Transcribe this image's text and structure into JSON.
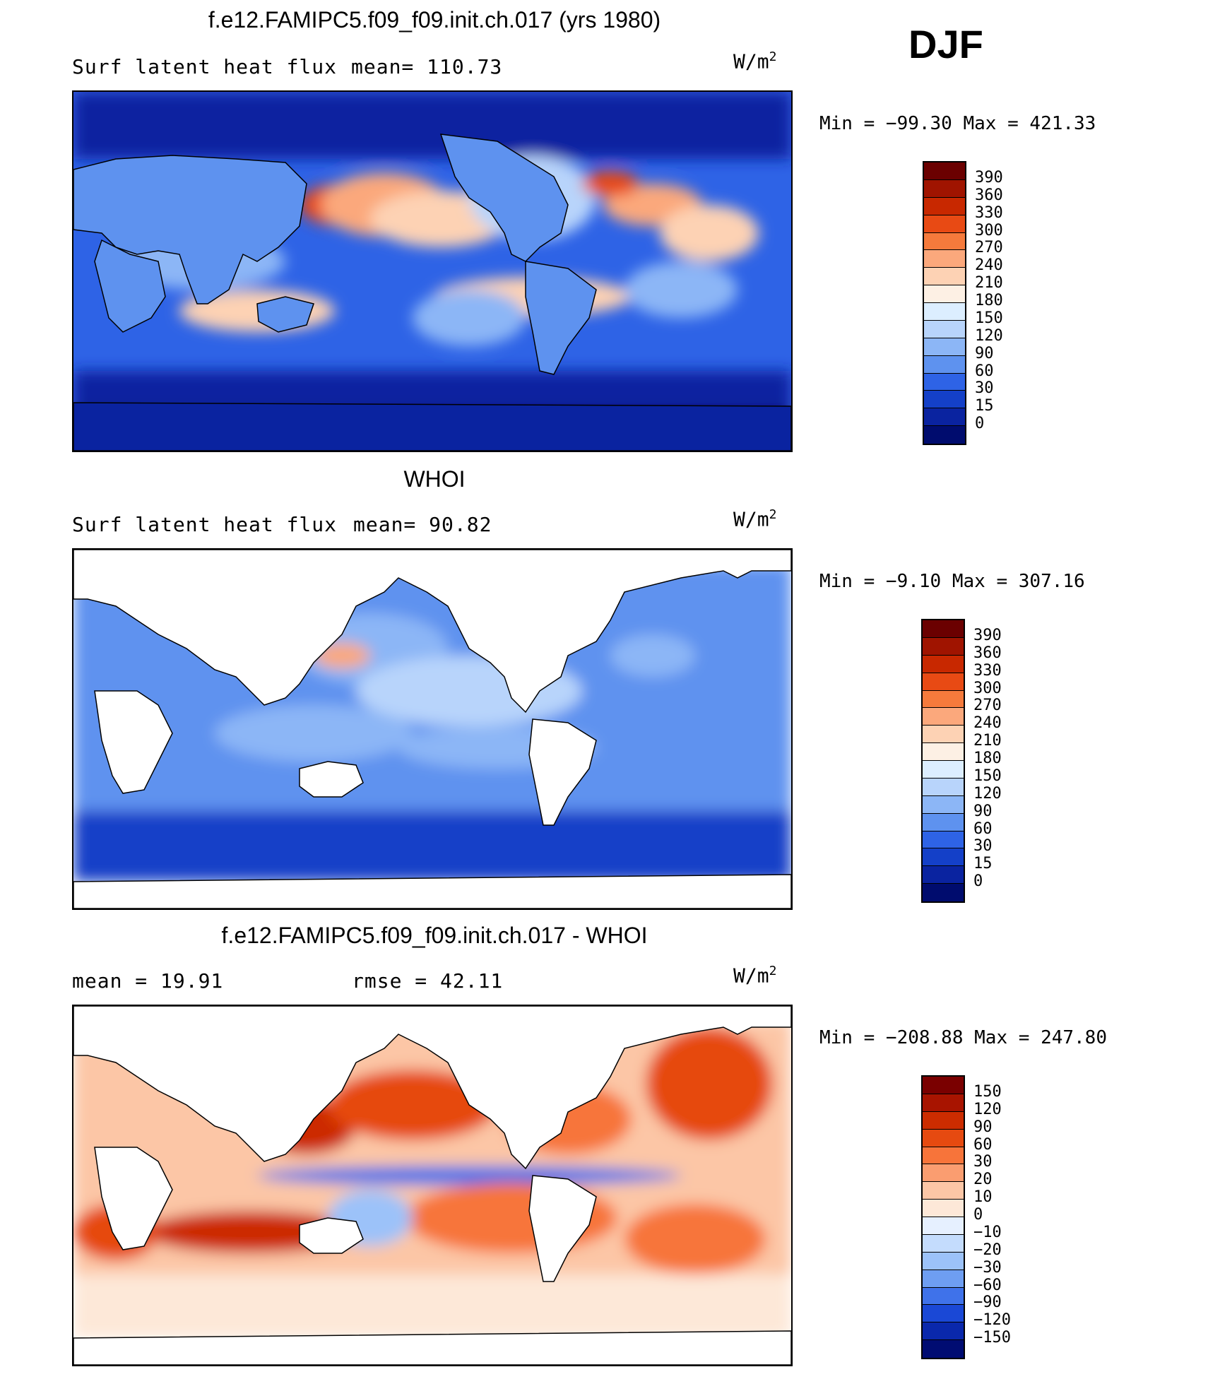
{
  "season": "DJF",
  "units_base": "W/m",
  "units_exp": "2",
  "panels": [
    {
      "title": "f.e12.FAMIPC5.f09_f09.init.ch.017 (yrs 1980)",
      "left_text": "Surf  latent  heat  flux",
      "right_text": "mean=  110.73",
      "minmax": "Min  =  −99.30  Max  =  421.33",
      "colorbar": [
        "390",
        "360",
        "330",
        "300",
        "270",
        "240",
        "210",
        "180",
        "150",
        "120",
        "90",
        "60",
        "30",
        "15",
        "0"
      ]
    },
    {
      "title": "WHOI",
      "left_text": "Surf  latent  heat  flux",
      "right_text": "mean=   90.82",
      "minmax": "Min  =   −9.10  Max  =  307.16",
      "colorbar": [
        "390",
        "360",
        "330",
        "300",
        "270",
        "240",
        "210",
        "180",
        "150",
        "120",
        "90",
        "60",
        "30",
        "15",
        "0"
      ]
    },
    {
      "title": "f.e12.FAMIPC5.f09_f09.init.ch.017 - WHOI",
      "left_text": "mean  =    19.91",
      "right_text": "rmse  =    42.11",
      "minmax": "Min  =  −208.88  Max  =  247.80",
      "colorbar": [
        "150",
        "120",
        "90",
        "60",
        "30",
        "20",
        "10",
        "0",
        "−10",
        "−20",
        "−30",
        "−60",
        "−90",
        "−120",
        "−150"
      ]
    }
  ],
  "colors": {
    "abs_scale": [
      "#6b0000",
      "#a01400",
      "#c82800",
      "#e84a14",
      "#f57a3c",
      "#fba87c",
      "#fdd2b4",
      "#fdf0e4",
      "#dceeff",
      "#b8d4fb",
      "#8cb6f6",
      "#5e92ef",
      "#2e63e6",
      "#1440c8",
      "#0a23a0",
      "#000c6e"
    ],
    "diff_scale": [
      "#7a0000",
      "#a81400",
      "#cc2c00",
      "#e64a10",
      "#f7743a",
      "#fa9d70",
      "#fcc6a6",
      "#fde8d8",
      "#e6f0ff",
      "#c4dcfd",
      "#9cc2f9",
      "#6e9ef2",
      "#3f72ea",
      "#1a48d6",
      "#0a28ac",
      "#000c72"
    ],
    "land": "#ffffff",
    "coast": "#000000"
  },
  "chart_data": [
    {
      "type": "heatmap",
      "title": "f.e12.FAMIPC5.f09_f09.init.ch.017 (yrs 1980)",
      "variable": "Surf latent heat flux",
      "units": "W/m2",
      "season": "DJF",
      "mean": 110.73,
      "min": -99.3,
      "max": 421.33,
      "contour_levels": [
        0,
        15,
        30,
        60,
        90,
        120,
        150,
        180,
        210,
        240,
        270,
        300,
        330,
        360,
        390
      ]
    },
    {
      "type": "heatmap",
      "title": "WHOI",
      "variable": "Surf latent heat flux",
      "units": "W/m2",
      "season": "DJF",
      "mean": 90.82,
      "min": -9.1,
      "max": 307.16,
      "contour_levels": [
        0,
        15,
        30,
        60,
        90,
        120,
        150,
        180,
        210,
        240,
        270,
        300,
        330,
        360,
        390
      ]
    },
    {
      "type": "heatmap",
      "title": "f.e12.FAMIPC5.f09_f09.init.ch.017 - WHOI",
      "units": "W/m2",
      "season": "DJF",
      "mean": 19.91,
      "rmse": 42.11,
      "min": -208.88,
      "max": 247.8,
      "contour_levels": [
        -150,
        -120,
        -90,
        -60,
        -30,
        -20,
        -10,
        0,
        10,
        20,
        30,
        60,
        90,
        120,
        150
      ]
    }
  ]
}
